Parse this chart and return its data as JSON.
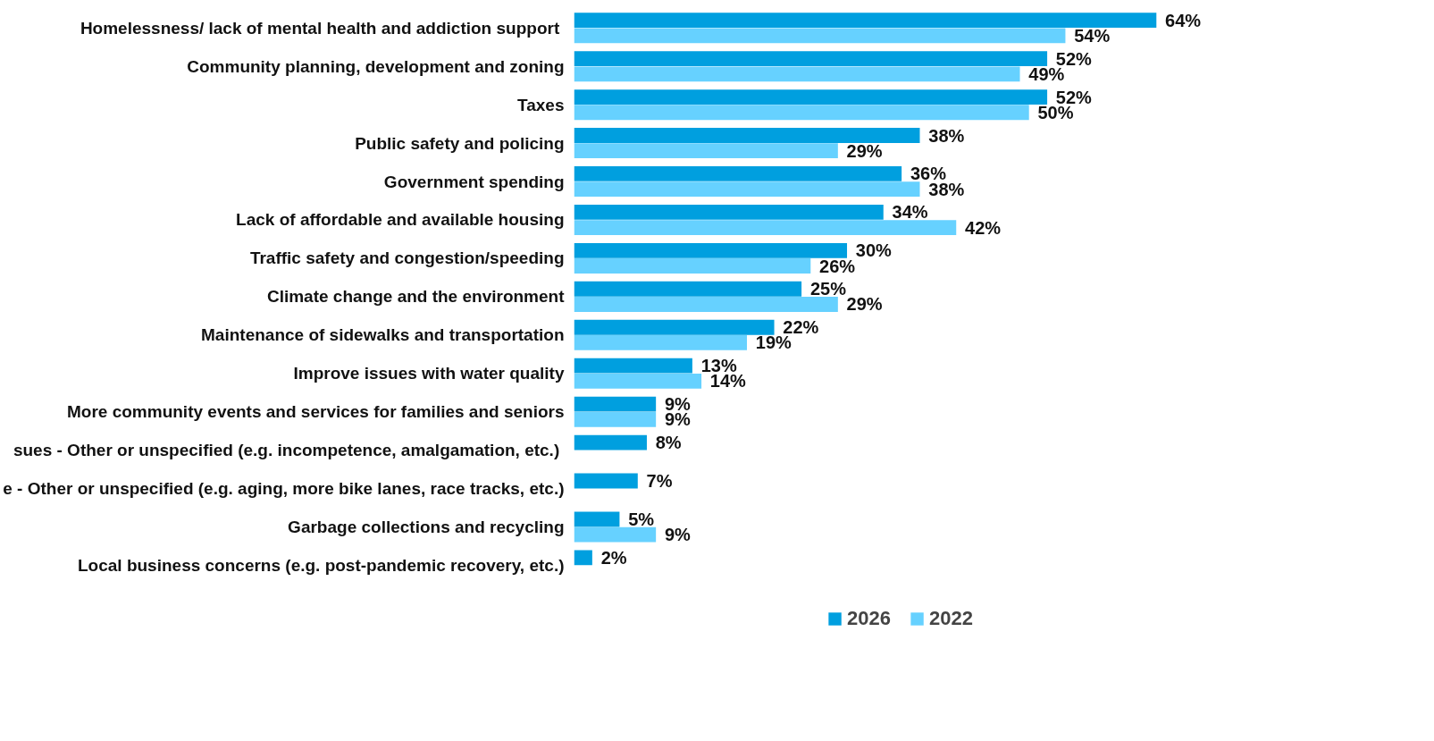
{
  "chart_data": {
    "type": "bar",
    "orientation": "horizontal",
    "legend": "bottom",
    "grid": false,
    "tick_labels": "y",
    "categories": [
      "Homelessness/ lack  of mental health and addiction support",
      "Community planning, development and zoning",
      "Taxes",
      "Public safety and policing",
      "Government spending",
      "Lack of affordable and available housing",
      "Traffic safety and congestion/speeding",
      "Climate change and the environment",
      "Maintenance of sidewalks and transportation",
      "Improve issues with water quality",
      "More community events and services for families and seniors",
      "sues - Other or unspecified  (e.g. incompetence, amalgamation, etc.)",
      "e - Other or unspecified (e.g. aging, more bike lanes, race tracks, etc.)",
      "Garbage collections and recycling",
      "Local business concerns (e.g. post-pandemic recovery, etc.)"
    ],
    "series": [
      {
        "name": "2026",
        "color": "#009fdf",
        "values": [
          64,
          52,
          52,
          38,
          36,
          34,
          30,
          25,
          22,
          13,
          9,
          8,
          7,
          5,
          2
        ],
        "value_labels": [
          "64%",
          "52%",
          "52%",
          "38%",
          "36%",
          "34%",
          "30%",
          "25%",
          "22%",
          "13%",
          "9%",
          "8%",
          "7%",
          "5%",
          "2%"
        ]
      },
      {
        "name": "2022",
        "color": "#66d1ff",
        "values": [
          54,
          49,
          50,
          29,
          38,
          42,
          26,
          29,
          19,
          14,
          9,
          null,
          null,
          9,
          null
        ],
        "value_labels": [
          "54%",
          "49%",
          "50%",
          "29%",
          "38%",
          "42%",
          "26%",
          "29%",
          "19%",
          "14%",
          "9%",
          null,
          null,
          "9%",
          null
        ]
      }
    ]
  }
}
